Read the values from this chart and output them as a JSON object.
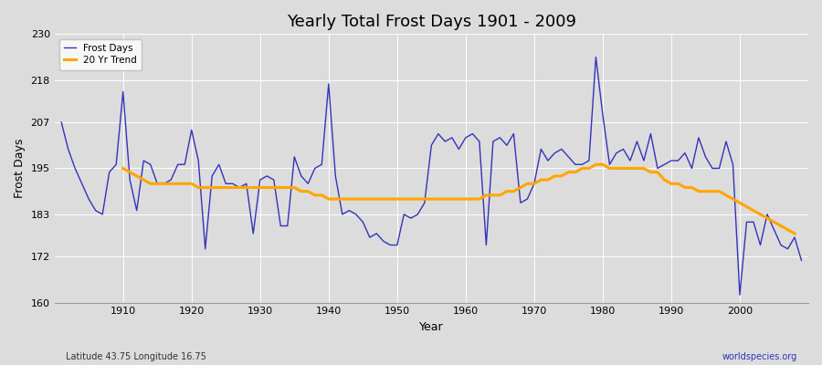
{
  "title": "Yearly Total Frost Days 1901 - 2009",
  "xlabel": "Year",
  "ylabel": "Frost Days",
  "lat_lon_label": "Latitude 43.75 Longitude 16.75",
  "source_label": "worldspecies.org",
  "ylim": [
    160,
    230
  ],
  "yticks": [
    160,
    172,
    183,
    195,
    207,
    218,
    230
  ],
  "bg_color": "#dcdcdc",
  "grid_color": "#ffffff",
  "line_color": "#3333bb",
  "trend_color": "#ffa500",
  "years": [
    1901,
    1902,
    1903,
    1904,
    1905,
    1906,
    1907,
    1908,
    1909,
    1910,
    1911,
    1912,
    1913,
    1914,
    1915,
    1916,
    1917,
    1918,
    1919,
    1920,
    1921,
    1922,
    1923,
    1924,
    1925,
    1926,
    1927,
    1928,
    1929,
    1930,
    1931,
    1932,
    1933,
    1934,
    1935,
    1936,
    1937,
    1938,
    1939,
    1940,
    1941,
    1942,
    1943,
    1944,
    1945,
    1946,
    1947,
    1948,
    1949,
    1950,
    1951,
    1952,
    1953,
    1954,
    1955,
    1956,
    1957,
    1958,
    1959,
    1960,
    1961,
    1962,
    1963,
    1964,
    1965,
    1966,
    1967,
    1968,
    1969,
    1970,
    1971,
    1972,
    1973,
    1974,
    1975,
    1976,
    1977,
    1978,
    1979,
    1980,
    1981,
    1982,
    1983,
    1984,
    1985,
    1986,
    1987,
    1988,
    1989,
    1990,
    1991,
    1992,
    1993,
    1994,
    1995,
    1996,
    1997,
    1998,
    1999,
    2000,
    2001,
    2002,
    2003,
    2004,
    2005,
    2006,
    2007,
    2008,
    2009
  ],
  "frost_days": [
    207,
    200,
    195,
    191,
    187,
    184,
    183,
    194,
    196,
    215,
    192,
    184,
    197,
    196,
    191,
    191,
    192,
    196,
    196,
    205,
    197,
    174,
    193,
    196,
    191,
    191,
    190,
    191,
    178,
    192,
    193,
    192,
    180,
    180,
    198,
    193,
    191,
    195,
    196,
    217,
    193,
    183,
    184,
    183,
    181,
    177,
    178,
    176,
    175,
    175,
    183,
    182,
    183,
    186,
    201,
    204,
    202,
    203,
    200,
    203,
    204,
    202,
    175,
    202,
    203,
    201,
    204,
    186,
    187,
    191,
    200,
    197,
    199,
    200,
    198,
    196,
    196,
    197,
    224,
    209,
    196,
    199,
    200,
    197,
    202,
    197,
    204,
    195,
    196,
    197,
    197,
    199,
    195,
    203,
    198,
    195,
    195,
    202,
    196,
    162,
    181,
    181,
    175,
    183,
    179,
    175,
    174,
    177,
    171
  ],
  "trend_x": [
    1910,
    1911,
    1912,
    1913,
    1914,
    1915,
    1916,
    1917,
    1918,
    1919,
    1920,
    1921,
    1922,
    1923,
    1924,
    1925,
    1926,
    1927,
    1928,
    1929,
    1930,
    1931,
    1932,
    1933,
    1934,
    1935,
    1936,
    1937,
    1938,
    1939,
    1940,
    1941,
    1942,
    1943,
    1944,
    1945,
    1946,
    1947,
    1948,
    1949,
    1950,
    1951,
    1952,
    1953,
    1954,
    1955,
    1956,
    1957,
    1958,
    1959,
    1960,
    1961,
    1962,
    1963,
    1964,
    1965,
    1966,
    1967,
    1968,
    1969,
    1970,
    1971,
    1972,
    1973,
    1974,
    1975,
    1976,
    1977,
    1978,
    1979,
    1980,
    1981,
    1982,
    1983,
    1984,
    1985,
    1986,
    1987,
    1988,
    1989,
    1990,
    1991,
    1992,
    1993,
    1994,
    1995,
    1996,
    1997,
    1998,
    1999,
    2000,
    2001,
    2002,
    2003,
    2004,
    2005,
    2006,
    2007,
    2008
  ],
  "trend_y": [
    195,
    194,
    193,
    192,
    191,
    191,
    191,
    191,
    191,
    191,
    191,
    190,
    190,
    190,
    190,
    190,
    190,
    190,
    190,
    190,
    190,
    190,
    190,
    190,
    190,
    190,
    189,
    189,
    188,
    188,
    187,
    187,
    187,
    187,
    187,
    187,
    187,
    187,
    187,
    187,
    187,
    187,
    187,
    187,
    187,
    187,
    187,
    187,
    187,
    187,
    187,
    187,
    187,
    188,
    188,
    188,
    189,
    189,
    190,
    191,
    191,
    192,
    192,
    193,
    193,
    194,
    194,
    195,
    195,
    196,
    196,
    195,
    195,
    195,
    195,
    195,
    195,
    194,
    194,
    192,
    191,
    191,
    190,
    190,
    189,
    189,
    189,
    189,
    188,
    187,
    186,
    185,
    184,
    183,
    182,
    181,
    180,
    179,
    178
  ]
}
